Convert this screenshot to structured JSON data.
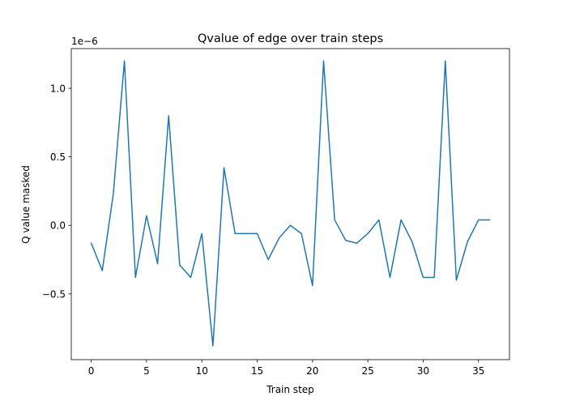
{
  "chart_data": {
    "type": "line",
    "title": "Qvalue of edge over train steps",
    "xlabel": "Train step",
    "ylabel": "Q value masked",
    "y_offset_label": "1e−6",
    "xlim": [
      -1.8,
      37.8
    ],
    "ylim": [
      -0.98,
      1.29
    ],
    "x_ticks": [
      0,
      5,
      10,
      15,
      20,
      25,
      30,
      35
    ],
    "x_tick_labels": [
      "0",
      "5",
      "10",
      "15",
      "20",
      "25",
      "30",
      "35"
    ],
    "y_ticks": [
      -0.5,
      0.0,
      0.5,
      1.0
    ],
    "y_tick_labels": [
      "−0.5",
      "0.0",
      "0.5",
      "1.0"
    ],
    "grid": false,
    "line_color": "#1f77b4",
    "series": [
      {
        "x": [
          0,
          1,
          2,
          3,
          4,
          5,
          6,
          7,
          8,
          9,
          10,
          11,
          12,
          13,
          14,
          15,
          16,
          17,
          18,
          19,
          20,
          21,
          22,
          23,
          24,
          25,
          26,
          27,
          28,
          29,
          30,
          31,
          32,
          33,
          34,
          35,
          36
        ],
        "values": [
          -0.13,
          -0.33,
          0.23,
          1.2,
          -0.38,
          0.07,
          -0.28,
          0.8,
          -0.29,
          -0.38,
          -0.06,
          -0.88,
          0.42,
          -0.06,
          -0.06,
          -0.06,
          -0.25,
          -0.09,
          0.0,
          -0.06,
          -0.44,
          1.2,
          0.04,
          -0.11,
          -0.13,
          -0.06,
          0.04,
          -0.38,
          0.04,
          -0.12,
          -0.38,
          -0.38,
          1.2,
          -0.4,
          -0.12,
          0.04,
          0.04
        ]
      }
    ]
  }
}
